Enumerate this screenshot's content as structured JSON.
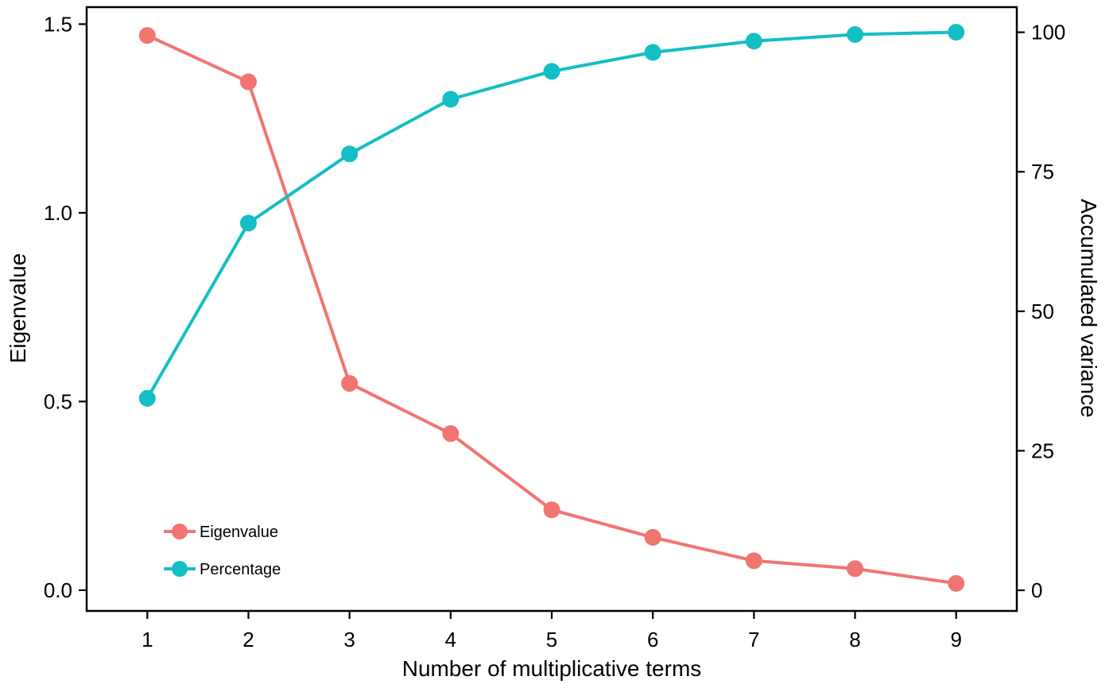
{
  "chart_data": {
    "type": "line",
    "title": "",
    "xlabel": "Number of multiplicative terms",
    "ylabel_left": "Eigenvalue",
    "ylabel_right": "Accumulated variance",
    "x": [
      1,
      2,
      3,
      4,
      5,
      6,
      7,
      8,
      9
    ],
    "x_ticks": [
      "1",
      "2",
      "3",
      "4",
      "5",
      "6",
      "7",
      "8",
      "9"
    ],
    "xlim": [
      0.4,
      9.6
    ],
    "ylim_left": [
      -0.055,
      1.545
    ],
    "ylim_right": [
      -3.7,
      104.5
    ],
    "y_ticks_left": [
      "0.0",
      "0.5",
      "1.0",
      "1.5"
    ],
    "y_ticks_right": [
      "0",
      "25",
      "50",
      "75",
      "100"
    ],
    "grid": false,
    "legend_position": "bottom-left",
    "series": [
      {
        "name": "Eigenvalue",
        "axis": "left",
        "color": "#F07470",
        "values": [
          1.47,
          1.347,
          0.548,
          0.415,
          0.213,
          0.14,
          0.078,
          0.057,
          0.018
        ]
      },
      {
        "name": "Percentage",
        "axis": "right",
        "color": "#13BEC4",
        "values": [
          34.4,
          65.8,
          78.2,
          88.0,
          93.0,
          96.4,
          98.4,
          99.6,
          100.0
        ]
      }
    ]
  }
}
